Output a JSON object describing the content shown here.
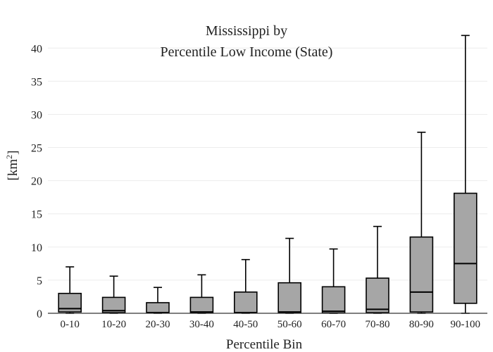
{
  "chart_data": {
    "type": "box",
    "title_line1": "Mississippi  by",
    "title_line2": "Percentile Low Income (State)",
    "xlabel": "Percentile Bin",
    "ylabel": "[km",
    "ylabel_sup": "2",
    "ylabel_close": "]",
    "ylim": [
      0,
      43
    ],
    "yticks": [
      0,
      5,
      10,
      15,
      20,
      25,
      30,
      35,
      40
    ],
    "grid": true,
    "categories": [
      "0-10",
      "10-20",
      "20-30",
      "30-40",
      "40-50",
      "50-60",
      "60-70",
      "70-80",
      "80-90",
      "90-100"
    ],
    "boxes": [
      {
        "category": "0-10",
        "min": 0,
        "q1": 0.2,
        "median": 0.7,
        "q3": 3.0,
        "max": 7.0
      },
      {
        "category": "10-20",
        "min": 0,
        "q1": 0.1,
        "median": 0.4,
        "q3": 2.4,
        "max": 5.6
      },
      {
        "category": "20-30",
        "min": 0,
        "q1": 0.05,
        "median": 0.1,
        "q3": 1.6,
        "max": 3.9
      },
      {
        "category": "30-40",
        "min": 0,
        "q1": 0.05,
        "median": 0.2,
        "q3": 2.4,
        "max": 5.8
      },
      {
        "category": "40-50",
        "min": 0,
        "q1": 0.05,
        "median": 0.1,
        "q3": 3.2,
        "max": 8.1
      },
      {
        "category": "50-60",
        "min": 0,
        "q1": 0.05,
        "median": 0.2,
        "q3": 4.6,
        "max": 11.3
      },
      {
        "category": "60-70",
        "min": 0,
        "q1": 0.05,
        "median": 0.3,
        "q3": 4.0,
        "max": 9.7
      },
      {
        "category": "70-80",
        "min": 0,
        "q1": 0.1,
        "median": 0.6,
        "q3": 5.3,
        "max": 13.1
      },
      {
        "category": "80-90",
        "min": 0,
        "q1": 0.2,
        "median": 3.2,
        "q3": 11.5,
        "max": 27.3
      },
      {
        "category": "90-100",
        "min": 0,
        "q1": 1.5,
        "median": 7.5,
        "q3": 18.1,
        "max": 41.9
      }
    ]
  }
}
